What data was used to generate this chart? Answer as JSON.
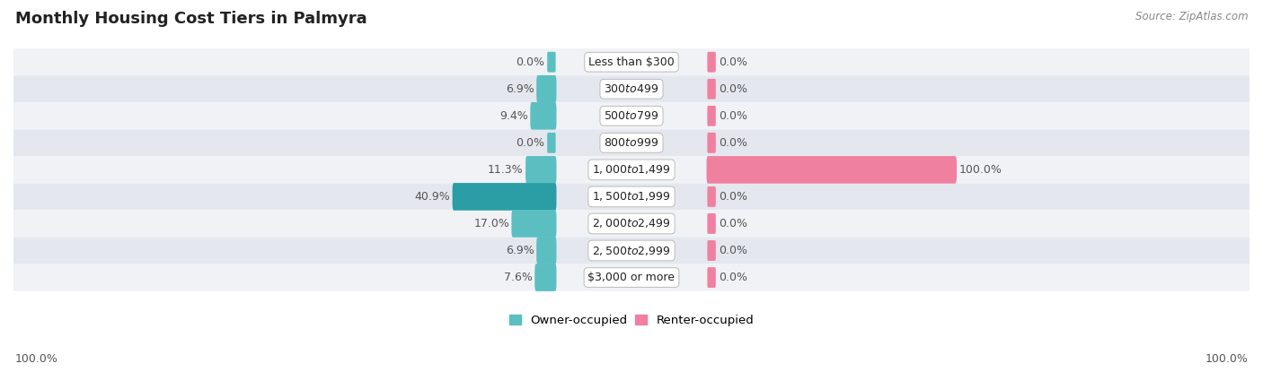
{
  "title": "Monthly Housing Cost Tiers in Palmyra",
  "source": "Source: ZipAtlas.com",
  "categories": [
    "Less than $300",
    "$300 to $499",
    "$500 to $799",
    "$800 to $999",
    "$1,000 to $1,499",
    "$1,500 to $1,999",
    "$2,000 to $2,499",
    "$2,500 to $2,999",
    "$3,000 or more"
  ],
  "owner_values": [
    0.0,
    6.9,
    9.4,
    0.0,
    11.3,
    40.9,
    17.0,
    6.9,
    7.6
  ],
  "renter_values": [
    0.0,
    0.0,
    0.0,
    0.0,
    100.0,
    0.0,
    0.0,
    0.0,
    0.0
  ],
  "owner_color": "#5bbfc2",
  "renter_color": "#f080a0",
  "owner_color_dark": "#2a9da5",
  "row_bg_even": "#f0f2f5",
  "row_bg_odd": "#e4e8ee",
  "max_value": 100.0,
  "axis_min_label": "100.0%",
  "axis_max_label": "100.0%",
  "legend_owner": "Owner-occupied",
  "legend_renter": "Renter-occupied",
  "title_fontsize": 13,
  "label_fontsize": 9,
  "bar_height": 0.52
}
